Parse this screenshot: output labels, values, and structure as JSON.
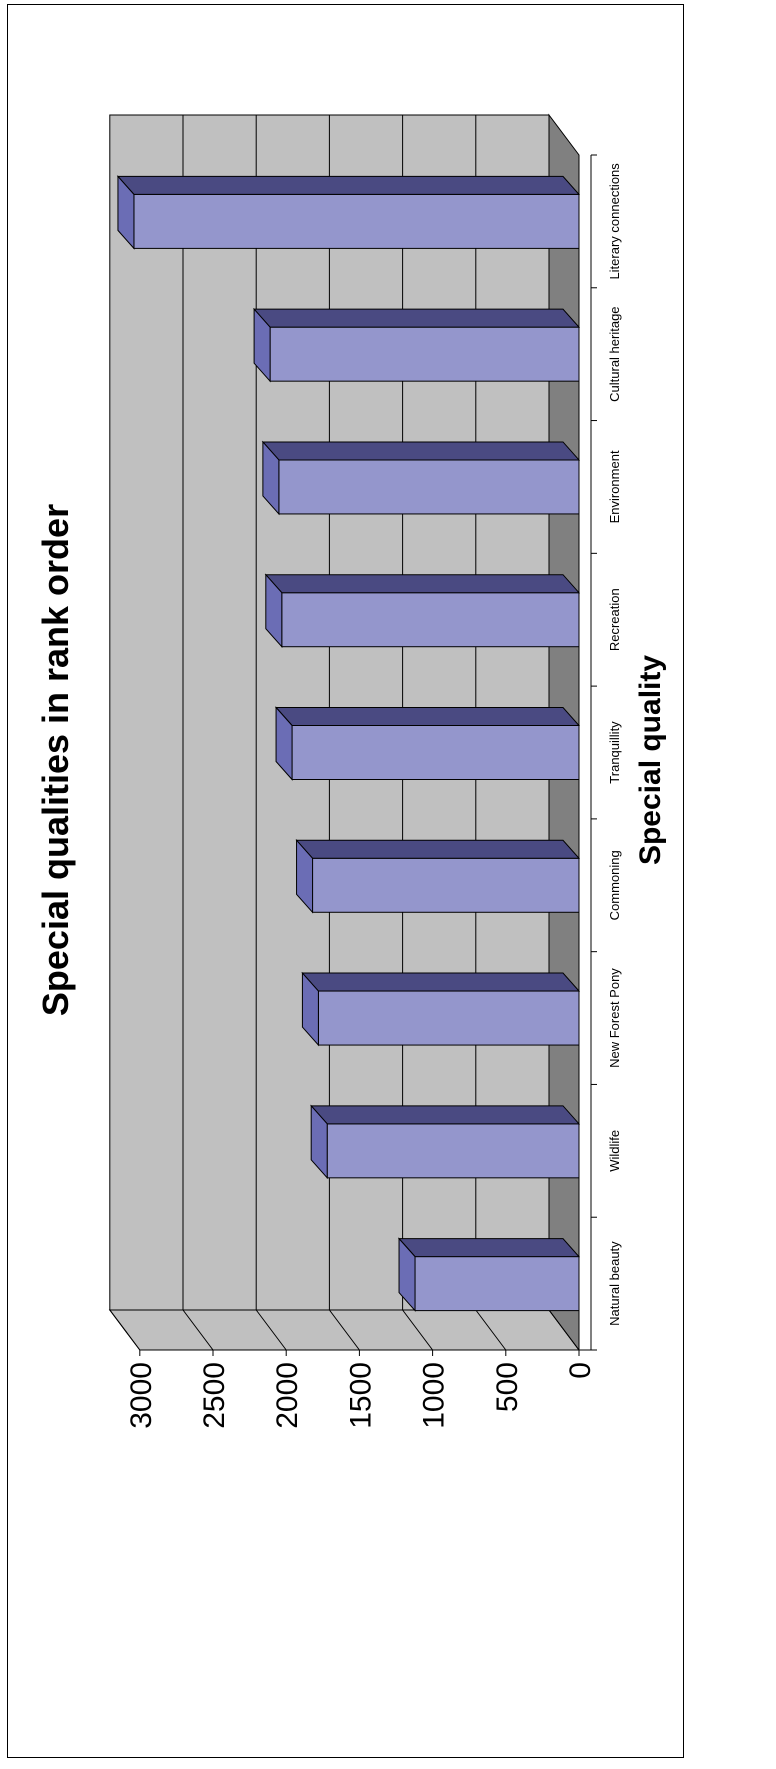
{
  "chart_data": {
    "type": "bar",
    "orientation": "rotated-90",
    "title": "Special qualities in rank order",
    "xlabel": "Special quality",
    "ylabel": "",
    "categories": [
      "Natural beauty",
      "Wildlife",
      "New Forest Pony",
      "Commoning",
      "Tranquillity",
      "Recreation",
      "Environment",
      "Cultural heritage",
      "Literary connections"
    ],
    "values": [
      1120,
      1720,
      1780,
      1820,
      1960,
      2030,
      2050,
      2110,
      3040
    ],
    "ylim": [
      0,
      3000
    ],
    "yticks": [
      "0",
      "500",
      "1000",
      "1500",
      "2000",
      "2500",
      "3000"
    ],
    "grid": true,
    "legend": "none",
    "colors": {
      "bar_front": "#9496cc",
      "bar_top": "#6b6db5",
      "bar_side": "#4a4a82",
      "wall": "#c0c0c0",
      "floor": "#808080"
    }
  }
}
